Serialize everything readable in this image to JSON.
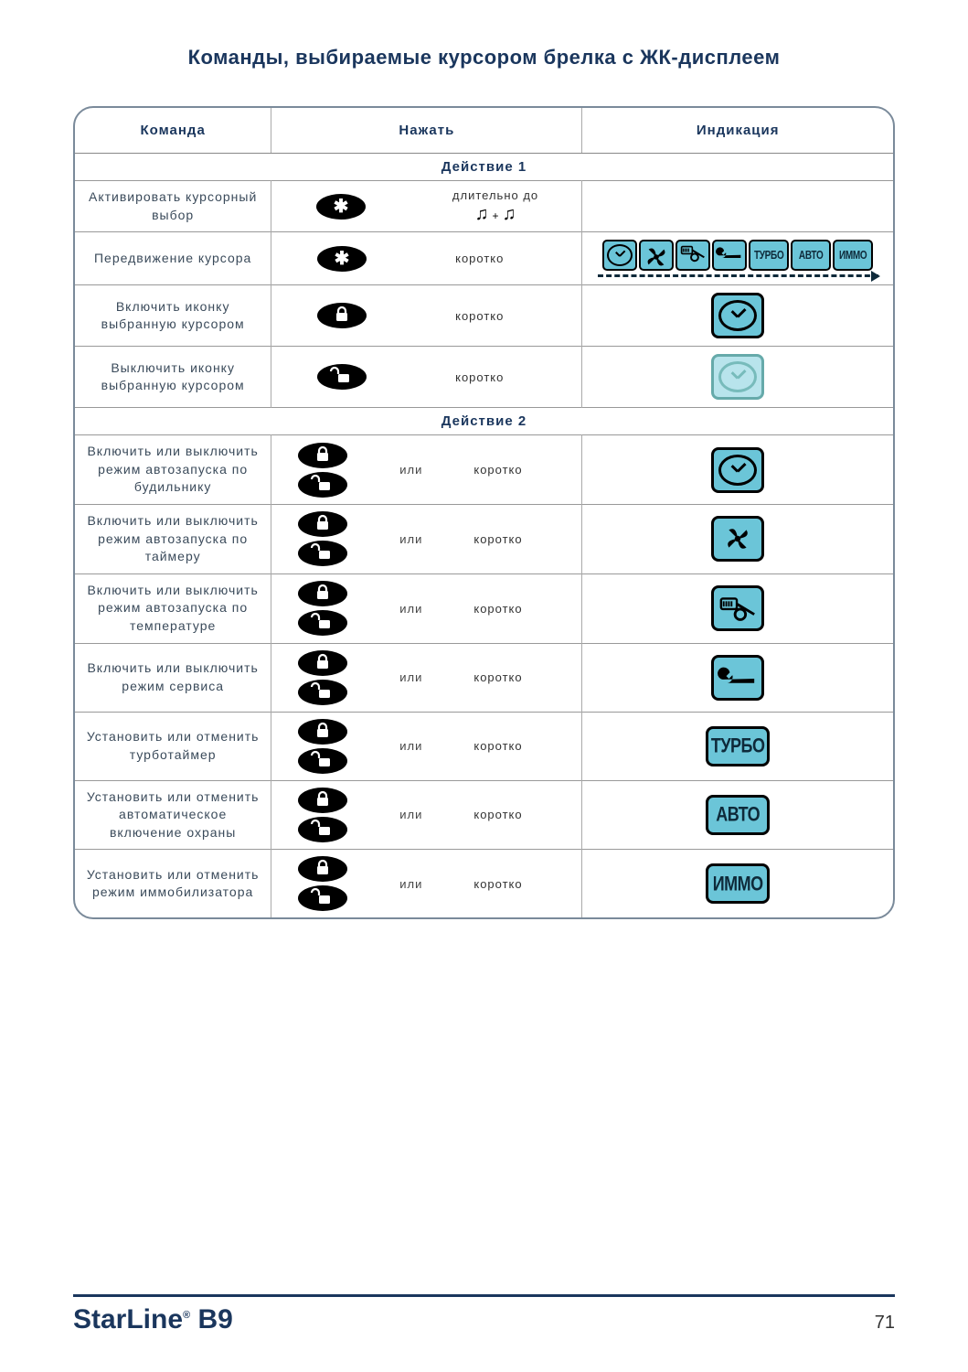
{
  "title": "Команды, выбираемые курсором брелка с ЖК-дисплеем",
  "headers": {
    "cmd": "Команда",
    "press": "Нажать",
    "ind": "Индикация"
  },
  "sections": {
    "s1": "Действие 1",
    "s2": "Действие 2"
  },
  "labels": {
    "or": "или",
    "short": "коротко",
    "long": "длительно до"
  },
  "rows1": [
    {
      "cmd": "Активировать курсорный выбор",
      "btn": "star",
      "dur": "long_notes",
      "ind": "none"
    },
    {
      "cmd": "Передвижение курсора",
      "btn": "star",
      "dur": "short",
      "ind": "strip"
    },
    {
      "cmd": "Включить иконку выбранную курсором",
      "btn": "lock",
      "dur": "short",
      "ind": "clock"
    },
    {
      "cmd": "Выключить иконку выбранную курсором",
      "btn": "unlock",
      "dur": "short",
      "ind": "clock_light"
    }
  ],
  "rows2": [
    {
      "cmd": "Включить или выключить режим автозапуска по будильнику",
      "ind_type": "icon",
      "ind": "clock"
    },
    {
      "cmd": "Включить или выключить режим автозапуска по таймеру",
      "ind_type": "icon",
      "ind": "fan"
    },
    {
      "cmd": "Включить или выключить режим автозапуска по температуре",
      "ind_type": "icon",
      "ind": "temp"
    },
    {
      "cmd": "Включить или выключить режим сервиса",
      "ind_type": "icon",
      "ind": "wrench"
    },
    {
      "cmd": "Установить или отменить турботаймер",
      "ind_type": "text",
      "ind": "ТУРБО"
    },
    {
      "cmd": "Установить или отменить автоматическое включение охраны",
      "ind_type": "text",
      "ind": "АВТО"
    },
    {
      "cmd": "Установить или отменить режим иммобилизатора",
      "ind_type": "text",
      "ind": "ИММО"
    }
  ],
  "strip_labels": [
    "ТУРБО",
    "АВТО",
    "ИММО"
  ],
  "footer": {
    "brand": "StarLine",
    "model": "B9",
    "page": "71"
  },
  "colors": {
    "accent_blue": "#6bc5d8",
    "accent_blue_light": "#b8e4ec",
    "text_dark": "#1a365d",
    "border": "#7a8a9a"
  }
}
